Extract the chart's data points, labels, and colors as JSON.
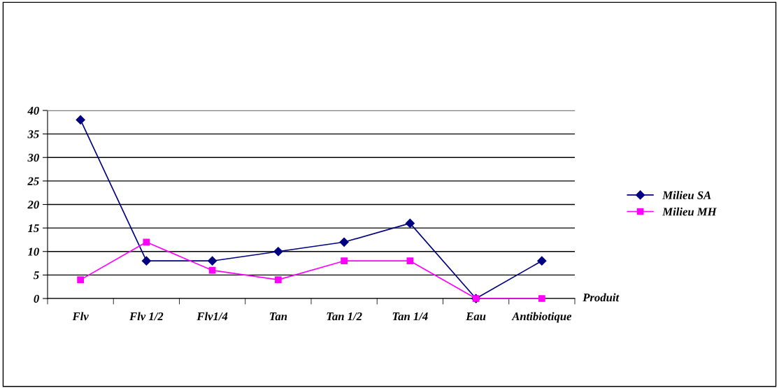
{
  "chart_data": {
    "type": "line",
    "categories": [
      "Flv",
      "Flv 1/2",
      "Flv1/4",
      "Tan",
      "Tan 1/2",
      "Tan 1/4",
      "Eau",
      "Antibiotique"
    ],
    "xlabel": "Produit",
    "ylim": [
      0,
      40
    ],
    "yticks": [
      0,
      5,
      10,
      15,
      20,
      25,
      30,
      35,
      40
    ],
    "grid": "y",
    "legend": "right",
    "series": [
      {
        "name": "Milieu SA",
        "color": "#000080",
        "marker": "diamond",
        "values": [
          38,
          8,
          8,
          10,
          12,
          16,
          0,
          8
        ]
      },
      {
        "name": "Milieu MH",
        "color": "#ff00ff",
        "marker": "square",
        "values": [
          4,
          12,
          6,
          4,
          8,
          8,
          0,
          0
        ]
      }
    ]
  }
}
